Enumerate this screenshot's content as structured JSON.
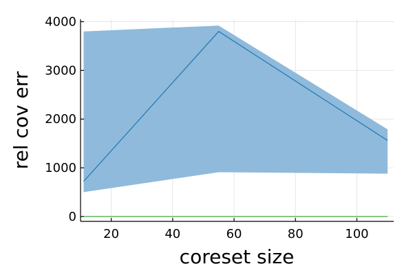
{
  "chart_data": {
    "type": "line",
    "xlabel": "coreset size",
    "ylabel": "rel cov err",
    "xlim": [
      10,
      112
    ],
    "ylim": [
      -100,
      4050
    ],
    "x_ticks": [
      20,
      40,
      60,
      80,
      100
    ],
    "y_ticks": [
      0,
      1000,
      2000,
      3000,
      4000
    ],
    "grid": true,
    "legend": "none",
    "colors": {
      "band": "#8fbadb",
      "line": "#1f77b4",
      "baseline": "#2ca02c"
    },
    "series": [
      {
        "x": [
          11,
          55,
          110
        ],
        "mean": [
          720,
          3800,
          1560
        ],
        "lower": [
          500,
          910,
          880
        ],
        "upper": [
          3800,
          3920,
          1790
        ]
      },
      {
        "x": [
          11,
          55,
          110
        ],
        "mean": [
          0,
          0,
          0
        ]
      }
    ]
  }
}
